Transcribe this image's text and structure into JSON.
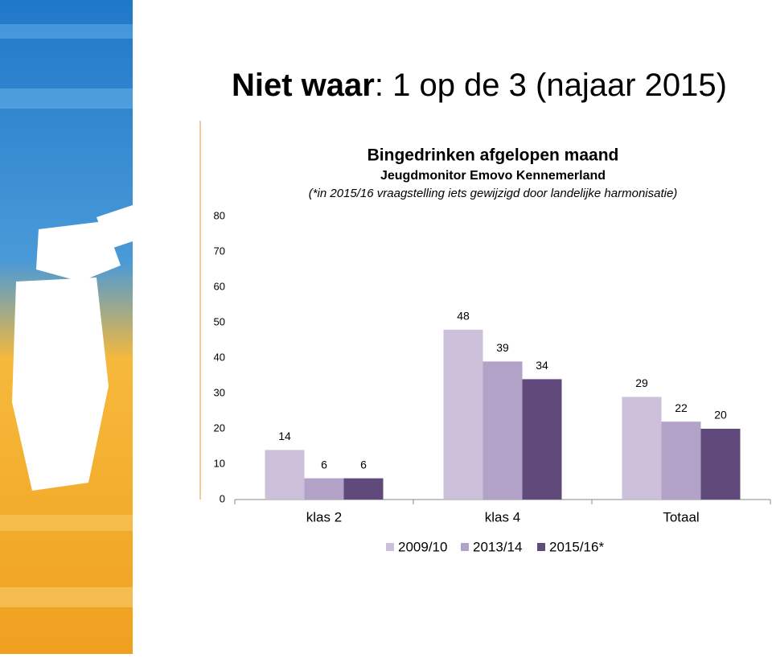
{
  "slide": {
    "title_bold": "Niet waar",
    "title_rest": ": 1 op de 3 (najaar 2015)"
  },
  "chart_data": {
    "type": "bar",
    "title": "Bingedrinken afgelopen maand",
    "subtitle": "Jeugdmonitor Emovo Kennemerland",
    "note": "(*in 2015/16 vraagstelling iets gewijzigd door landelijke harmonisatie)",
    "categories": [
      "klas 2",
      "klas 4",
      "Totaal"
    ],
    "series": [
      {
        "name": "2009/10",
        "color": "#ccc0da",
        "values": [
          14,
          48,
          29
        ]
      },
      {
        "name": "2013/14",
        "color": "#b3a2c7",
        "values": [
          6,
          39,
          22
        ]
      },
      {
        "name": "2015/16*",
        "color": "#604a7b",
        "values": [
          6,
          34,
          20
        ]
      }
    ],
    "ylim": [
      0,
      80
    ],
    "yticks": [
      0,
      10,
      20,
      30,
      40,
      50,
      60,
      70,
      80
    ],
    "grid": false,
    "legend": "bottom"
  }
}
